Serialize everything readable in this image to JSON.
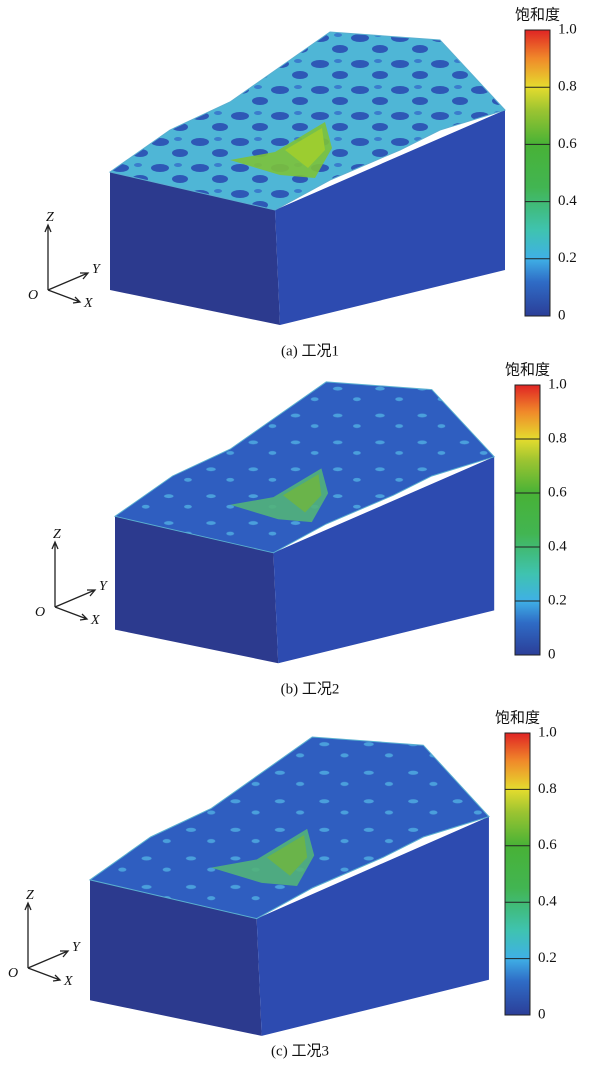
{
  "panels": [
    {
      "caption": "(a) 工况1",
      "colorbar": {
        "title": "饱和度",
        "ticks": [
          0,
          0.2,
          0.4,
          0.6,
          0.8,
          {
            "value": 1,
            "label": "1.0"
          }
        ]
      },
      "axes": {
        "z": "Z",
        "y": "Y",
        "x": "X",
        "o": "O"
      }
    },
    {
      "caption": "(b) 工况2",
      "colorbar": {
        "title": "饱和度",
        "ticks": [
          0,
          0.2,
          0.4,
          0.6,
          0.8,
          {
            "value": 1,
            "label": "1.0"
          }
        ]
      },
      "axes": {
        "z": "Z",
        "y": "Y",
        "x": "X",
        "o": "O"
      }
    },
    {
      "caption": "(c) 工况3",
      "colorbar": {
        "title": "饱和度",
        "ticks": [
          0,
          0.2,
          0.4,
          0.6,
          0.8,
          {
            "value": 1,
            "label": "1.0"
          }
        ]
      },
      "axes": {
        "z": "Z",
        "y": "Y",
        "x": "X",
        "o": "O"
      }
    }
  ]
}
